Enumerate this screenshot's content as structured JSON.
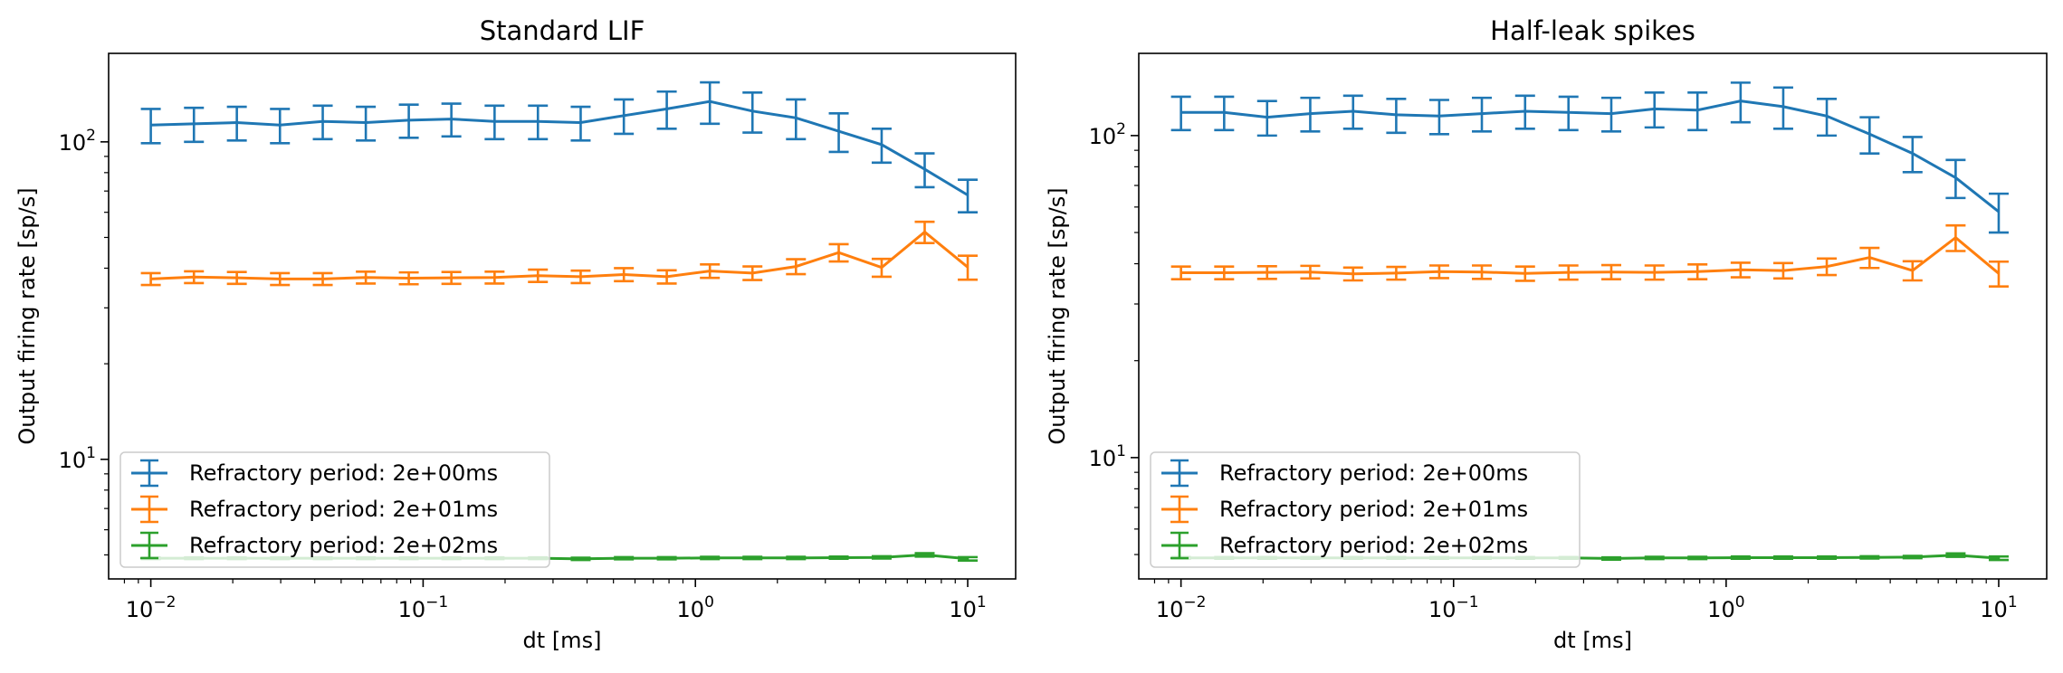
{
  "chart_data": [
    {
      "type": "line",
      "title": "Standard LIF",
      "xlabel": "dt [ms]",
      "ylabel": "Output firing rate [sp/s]",
      "xscale": "log",
      "yscale": "log",
      "xlim": [
        0.007,
        15
      ],
      "ylim": [
        4.2,
        190
      ],
      "x_ticks": [
        {
          "value": 0.01,
          "base": "10",
          "exp": "−2"
        },
        {
          "value": 0.1,
          "base": "10",
          "exp": "−1"
        },
        {
          "value": 1,
          "base": "10",
          "exp": "0"
        },
        {
          "value": 10,
          "base": "10",
          "exp": "1"
        }
      ],
      "y_ticks": [
        {
          "value": 10,
          "base": "10",
          "exp": "1"
        },
        {
          "value": 100,
          "base": "10",
          "exp": "2"
        }
      ],
      "legend_position": "lower-left",
      "x": [
        0.01,
        0.0144,
        0.0207,
        0.0298,
        0.0428,
        0.0616,
        0.0886,
        0.127,
        0.183,
        0.264,
        0.379,
        0.546,
        0.785,
        1.13,
        1.62,
        2.34,
        3.36,
        4.83,
        6.95,
        10.0
      ],
      "series": [
        {
          "name": "Refractory period: 2e+00ms",
          "color": "#1f77b4",
          "values": [
            113,
            114,
            115,
            113,
            116,
            115,
            117,
            118,
            116,
            116,
            115,
            121,
            127,
            134,
            125,
            119,
            108,
            98,
            82,
            68
          ],
          "errors": [
            14,
            14,
            14,
            14,
            14,
            14,
            14,
            14,
            14,
            14,
            14,
            15,
            17,
            20,
            18,
            17,
            15,
            12,
            10,
            8
          ]
        },
        {
          "name": "Refractory period: 2e+01ms",
          "color": "#ff7f0e",
          "values": [
            37,
            37.5,
            37.3,
            37,
            37,
            37.4,
            37.2,
            37.3,
            37.4,
            37.9,
            37.6,
            38.2,
            37.6,
            39.2,
            38.6,
            40.5,
            44.8,
            40.2,
            52,
            40.3
          ],
          "errors": [
            1.6,
            1.6,
            1.6,
            1.6,
            1.6,
            1.6,
            1.6,
            1.6,
            1.6,
            1.7,
            1.7,
            1.8,
            1.8,
            1.9,
            1.9,
            2.2,
            2.8,
            2.6,
            4.0,
            3.5
          ]
        },
        {
          "name": "Refractory period: 2e+02ms",
          "color": "#2ca02c",
          "values": [
            4.88,
            4.88,
            4.88,
            4.88,
            4.88,
            4.88,
            4.88,
            4.88,
            4.88,
            4.88,
            4.86,
            4.88,
            4.88,
            4.89,
            4.89,
            4.89,
            4.9,
            4.91,
            5.0,
            4.86
          ],
          "errors": [
            0.03,
            0.03,
            0.03,
            0.03,
            0.03,
            0.03,
            0.03,
            0.03,
            0.03,
            0.03,
            0.04,
            0.04,
            0.04,
            0.04,
            0.04,
            0.04,
            0.04,
            0.04,
            0.06,
            0.06
          ]
        }
      ]
    },
    {
      "type": "line",
      "title": "Half-leak spikes",
      "xlabel": "dt [ms]",
      "ylabel": "Output firing rate [sp/s]",
      "xscale": "log",
      "yscale": "log",
      "xlim": [
        0.007,
        15
      ],
      "ylim": [
        4.2,
        180
      ],
      "x_ticks": [
        {
          "value": 0.01,
          "base": "10",
          "exp": "−2"
        },
        {
          "value": 0.1,
          "base": "10",
          "exp": "−1"
        },
        {
          "value": 1,
          "base": "10",
          "exp": "0"
        },
        {
          "value": 10,
          "base": "10",
          "exp": "1"
        }
      ],
      "y_ticks": [
        {
          "value": 10,
          "base": "10",
          "exp": "1"
        },
        {
          "value": 100,
          "base": "10",
          "exp": "2"
        }
      ],
      "legend_position": "lower-left",
      "x": [
        0.01,
        0.0144,
        0.0207,
        0.0298,
        0.0428,
        0.0616,
        0.0886,
        0.127,
        0.183,
        0.264,
        0.379,
        0.546,
        0.785,
        1.13,
        1.62,
        2.34,
        3.36,
        4.83,
        6.95,
        10.0
      ],
      "series": [
        {
          "name": "Refractory period: 2e+00ms",
          "color": "#1f77b4",
          "values": [
            118,
            118,
            114,
            117,
            119,
            116,
            115,
            117,
            119,
            118,
            117,
            121,
            120,
            128,
            123,
            115,
            101,
            88,
            74,
            58
          ],
          "errors": [
            14,
            14,
            14,
            14,
            14,
            14,
            14,
            14,
            14,
            14,
            14,
            15,
            16,
            18,
            18,
            15,
            13,
            11,
            10,
            8
          ]
        },
        {
          "name": "Refractory period: 2e+01ms",
          "color": "#ff7f0e",
          "values": [
            37.5,
            37.5,
            37.6,
            37.7,
            37.2,
            37.4,
            37.8,
            37.7,
            37.3,
            37.6,
            37.7,
            37.6,
            37.8,
            38.3,
            38.1,
            39.2,
            41.8,
            38.1,
            48.2,
            37.3
          ],
          "errors": [
            1.7,
            1.7,
            1.7,
            1.7,
            1.7,
            1.7,
            1.7,
            1.8,
            1.9,
            1.9,
            1.9,
            1.9,
            2.0,
            2.0,
            2.1,
            2.3,
            3.0,
            2.6,
            4.4,
            3.3
          ]
        },
        {
          "name": "Refractory period: 2e+02ms",
          "color": "#2ca02c",
          "values": [
            4.88,
            4.88,
            4.88,
            4.88,
            4.88,
            4.88,
            4.88,
            4.88,
            4.88,
            4.88,
            4.86,
            4.88,
            4.88,
            4.89,
            4.89,
            4.89,
            4.9,
            4.91,
            4.98,
            4.87
          ],
          "errors": [
            0.03,
            0.03,
            0.03,
            0.03,
            0.03,
            0.03,
            0.03,
            0.03,
            0.03,
            0.03,
            0.04,
            0.04,
            0.04,
            0.04,
            0.04,
            0.04,
            0.04,
            0.04,
            0.06,
            0.06
          ]
        }
      ]
    }
  ]
}
